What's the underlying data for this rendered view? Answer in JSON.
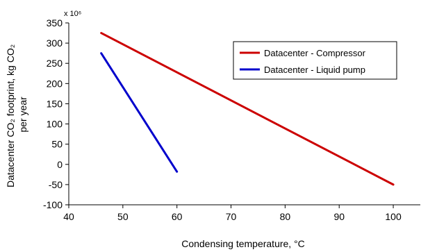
{
  "chart_data": {
    "type": "line",
    "xlabel": "Condensing temperature, °C",
    "ylabel": "Datacenter CO₂ footprint, kg CO₂ per year",
    "y_multiplier": "x 10⁶",
    "xlim": [
      40,
      105
    ],
    "ylim": [
      -100,
      350
    ],
    "x_ticks": [
      40,
      50,
      60,
      70,
      80,
      90,
      100
    ],
    "y_ticks": [
      -100,
      -50,
      0,
      50,
      100,
      150,
      200,
      250,
      300,
      350
    ],
    "grid": false,
    "legend_position": "top-right",
    "series": [
      {
        "name": "Datacenter - Compressor",
        "color": "#cc0000",
        "x": [
          46,
          100
        ],
        "y": [
          325,
          -50
        ]
      },
      {
        "name": "Datacenter - Liquid pump",
        "color": "#0000cc",
        "x": [
          46,
          60
        ],
        "y": [
          275,
          -18
        ]
      }
    ]
  }
}
